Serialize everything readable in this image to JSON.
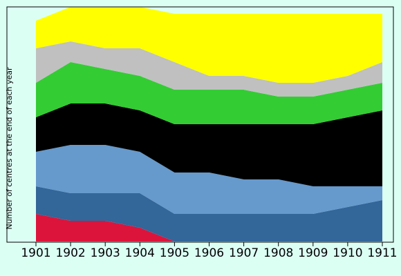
{
  "chart_data": {
    "type": "area",
    "stacked": true,
    "title": "",
    "xlabel": "",
    "ylabel": "Number of centres at the end of each year",
    "x": [
      "1901",
      "1902",
      "1903",
      "1904",
      "1905",
      "1906",
      "1907",
      "1908",
      "1909",
      "1910",
      "1911"
    ],
    "ylim": [
      0,
      34
    ],
    "grid": false,
    "legend": "none",
    "series": [
      {
        "color": "#dc143c",
        "values": [
          4,
          3,
          3,
          2,
          0,
          0,
          0,
          0,
          0,
          0,
          0
        ]
      },
      {
        "color": "#336699",
        "values": [
          4,
          4,
          4,
          5,
          4,
          4,
          4,
          4,
          4,
          5,
          6
        ]
      },
      {
        "color": "#6699cc",
        "values": [
          5,
          7,
          7,
          6,
          6,
          6,
          5,
          5,
          4,
          3,
          2
        ]
      },
      {
        "color": "#000000",
        "values": [
          5,
          6,
          6,
          6,
          7,
          7,
          8,
          8,
          9,
          10,
          11
        ]
      },
      {
        "color": "#33cc33",
        "values": [
          5,
          6,
          5,
          5,
          5,
          5,
          5,
          4,
          4,
          4,
          4
        ]
      },
      {
        "color": "#c0c0c0",
        "values": [
          5,
          3,
          3,
          4,
          4,
          2,
          2,
          2,
          2,
          2,
          3
        ]
      },
      {
        "color": "#ffff00",
        "values": [
          4,
          5,
          6,
          6,
          7,
          9,
          9,
          10,
          10,
          9,
          7
        ]
      }
    ]
  }
}
